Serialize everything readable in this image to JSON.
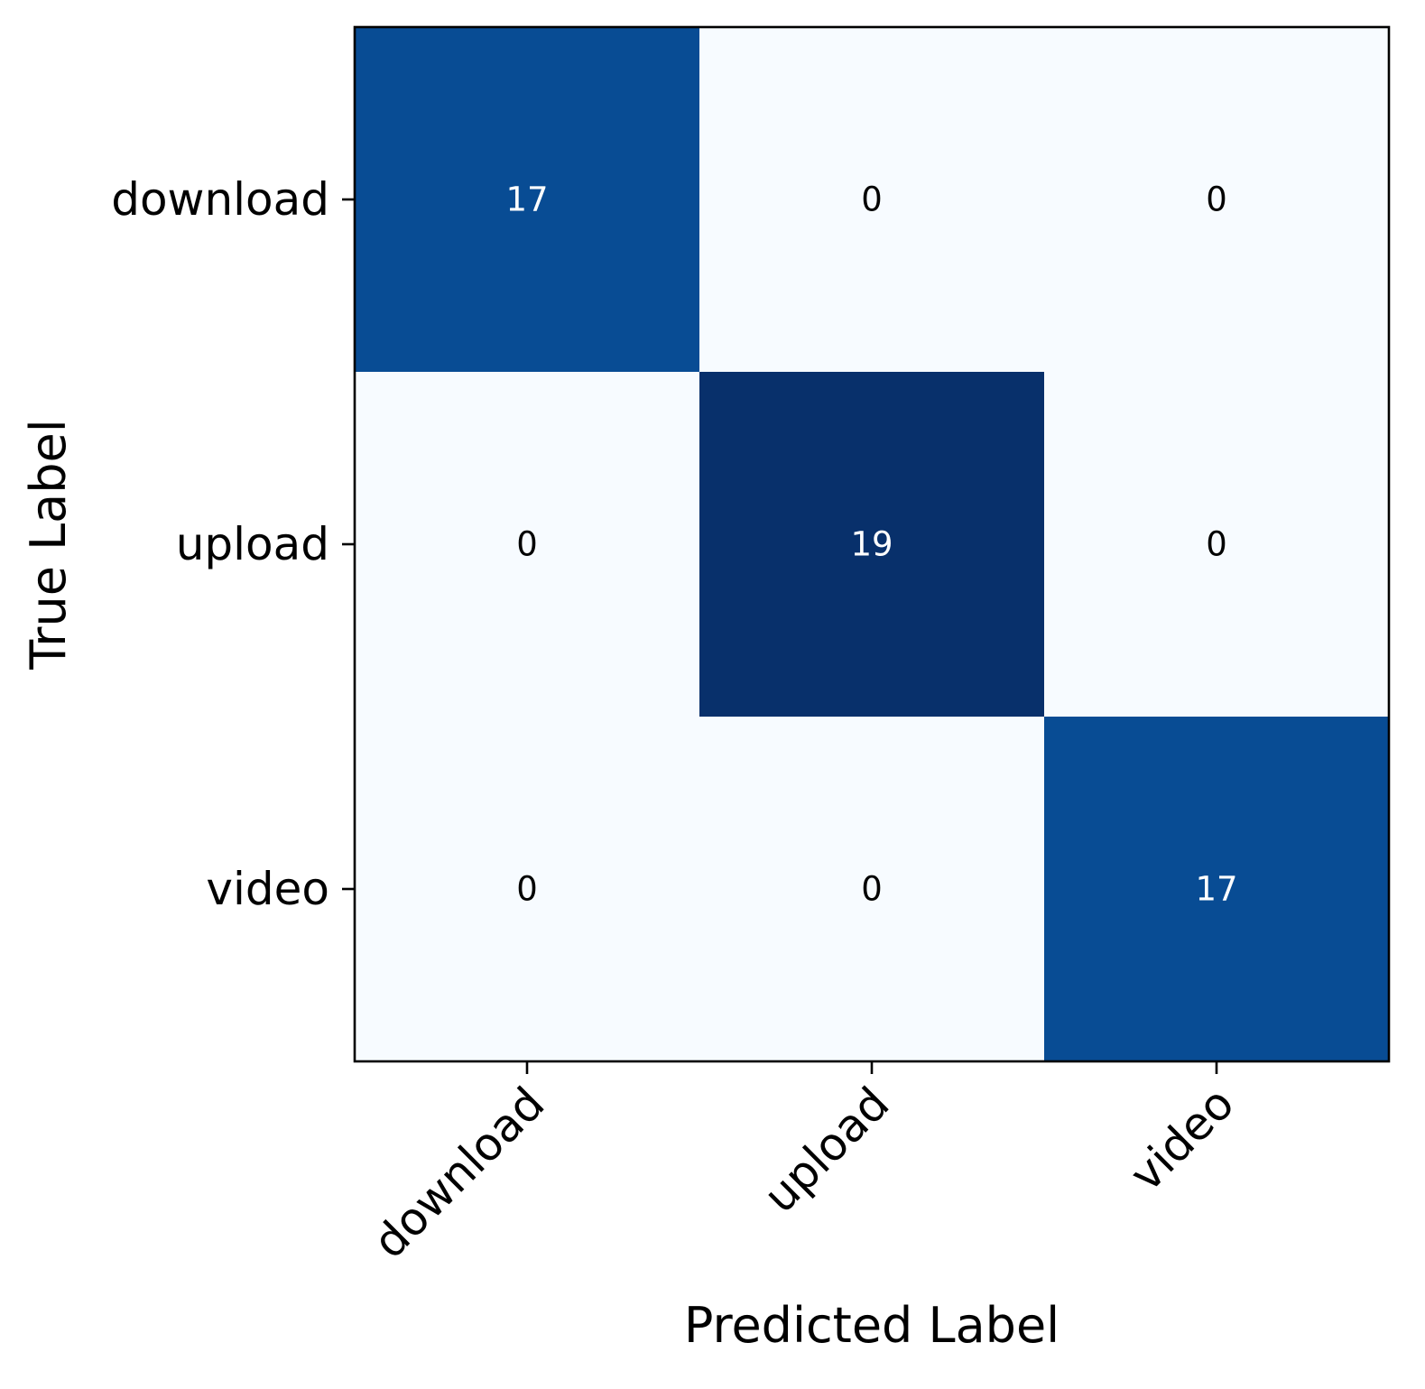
{
  "chart_data": {
    "type": "heatmap",
    "title": "",
    "xlabel": "Predicted Label",
    "ylabel": "True Label",
    "x_categories": [
      "download",
      "upload",
      "video"
    ],
    "y_categories": [
      "download",
      "upload",
      "video"
    ],
    "matrix": [
      [
        17,
        0,
        0
      ],
      [
        0,
        19,
        0
      ],
      [
        0,
        0,
        17
      ]
    ],
    "value_range": [
      0,
      19
    ],
    "colormap": "Blues",
    "colors": {
      "low": "#f7fbff",
      "high": "#08306b",
      "text_dark": "#000000",
      "text_light": "#ffffff"
    },
    "grid": false,
    "legend": "none",
    "x_tick_rotation_deg": 45
  }
}
